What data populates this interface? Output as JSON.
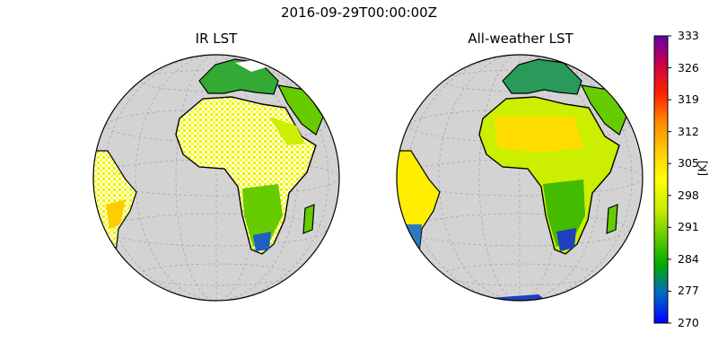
{
  "figure": {
    "suptitle": "2016-09-29T00:00:00Z",
    "panels": [
      {
        "title": "IR LST"
      },
      {
        "title": "All-weather LST"
      }
    ]
  },
  "colorbar": {
    "label": "[K]",
    "min": 270,
    "max": 333,
    "ticks": [
      "333",
      "326",
      "319",
      "312",
      "305",
      "298",
      "291",
      "284",
      "277",
      "270"
    ],
    "colors": [
      "#0000ff",
      "#0066cc",
      "#00aa00",
      "#66cc00",
      "#ccee00",
      "#ffff00",
      "#ffcc00",
      "#ff8800",
      "#ff2200",
      "#cc0044",
      "#6600aa"
    ]
  },
  "style": {
    "ocean_color": "#d3d3d3",
    "no_data_color": "#ffffff",
    "coastline_color": "#000000"
  }
}
